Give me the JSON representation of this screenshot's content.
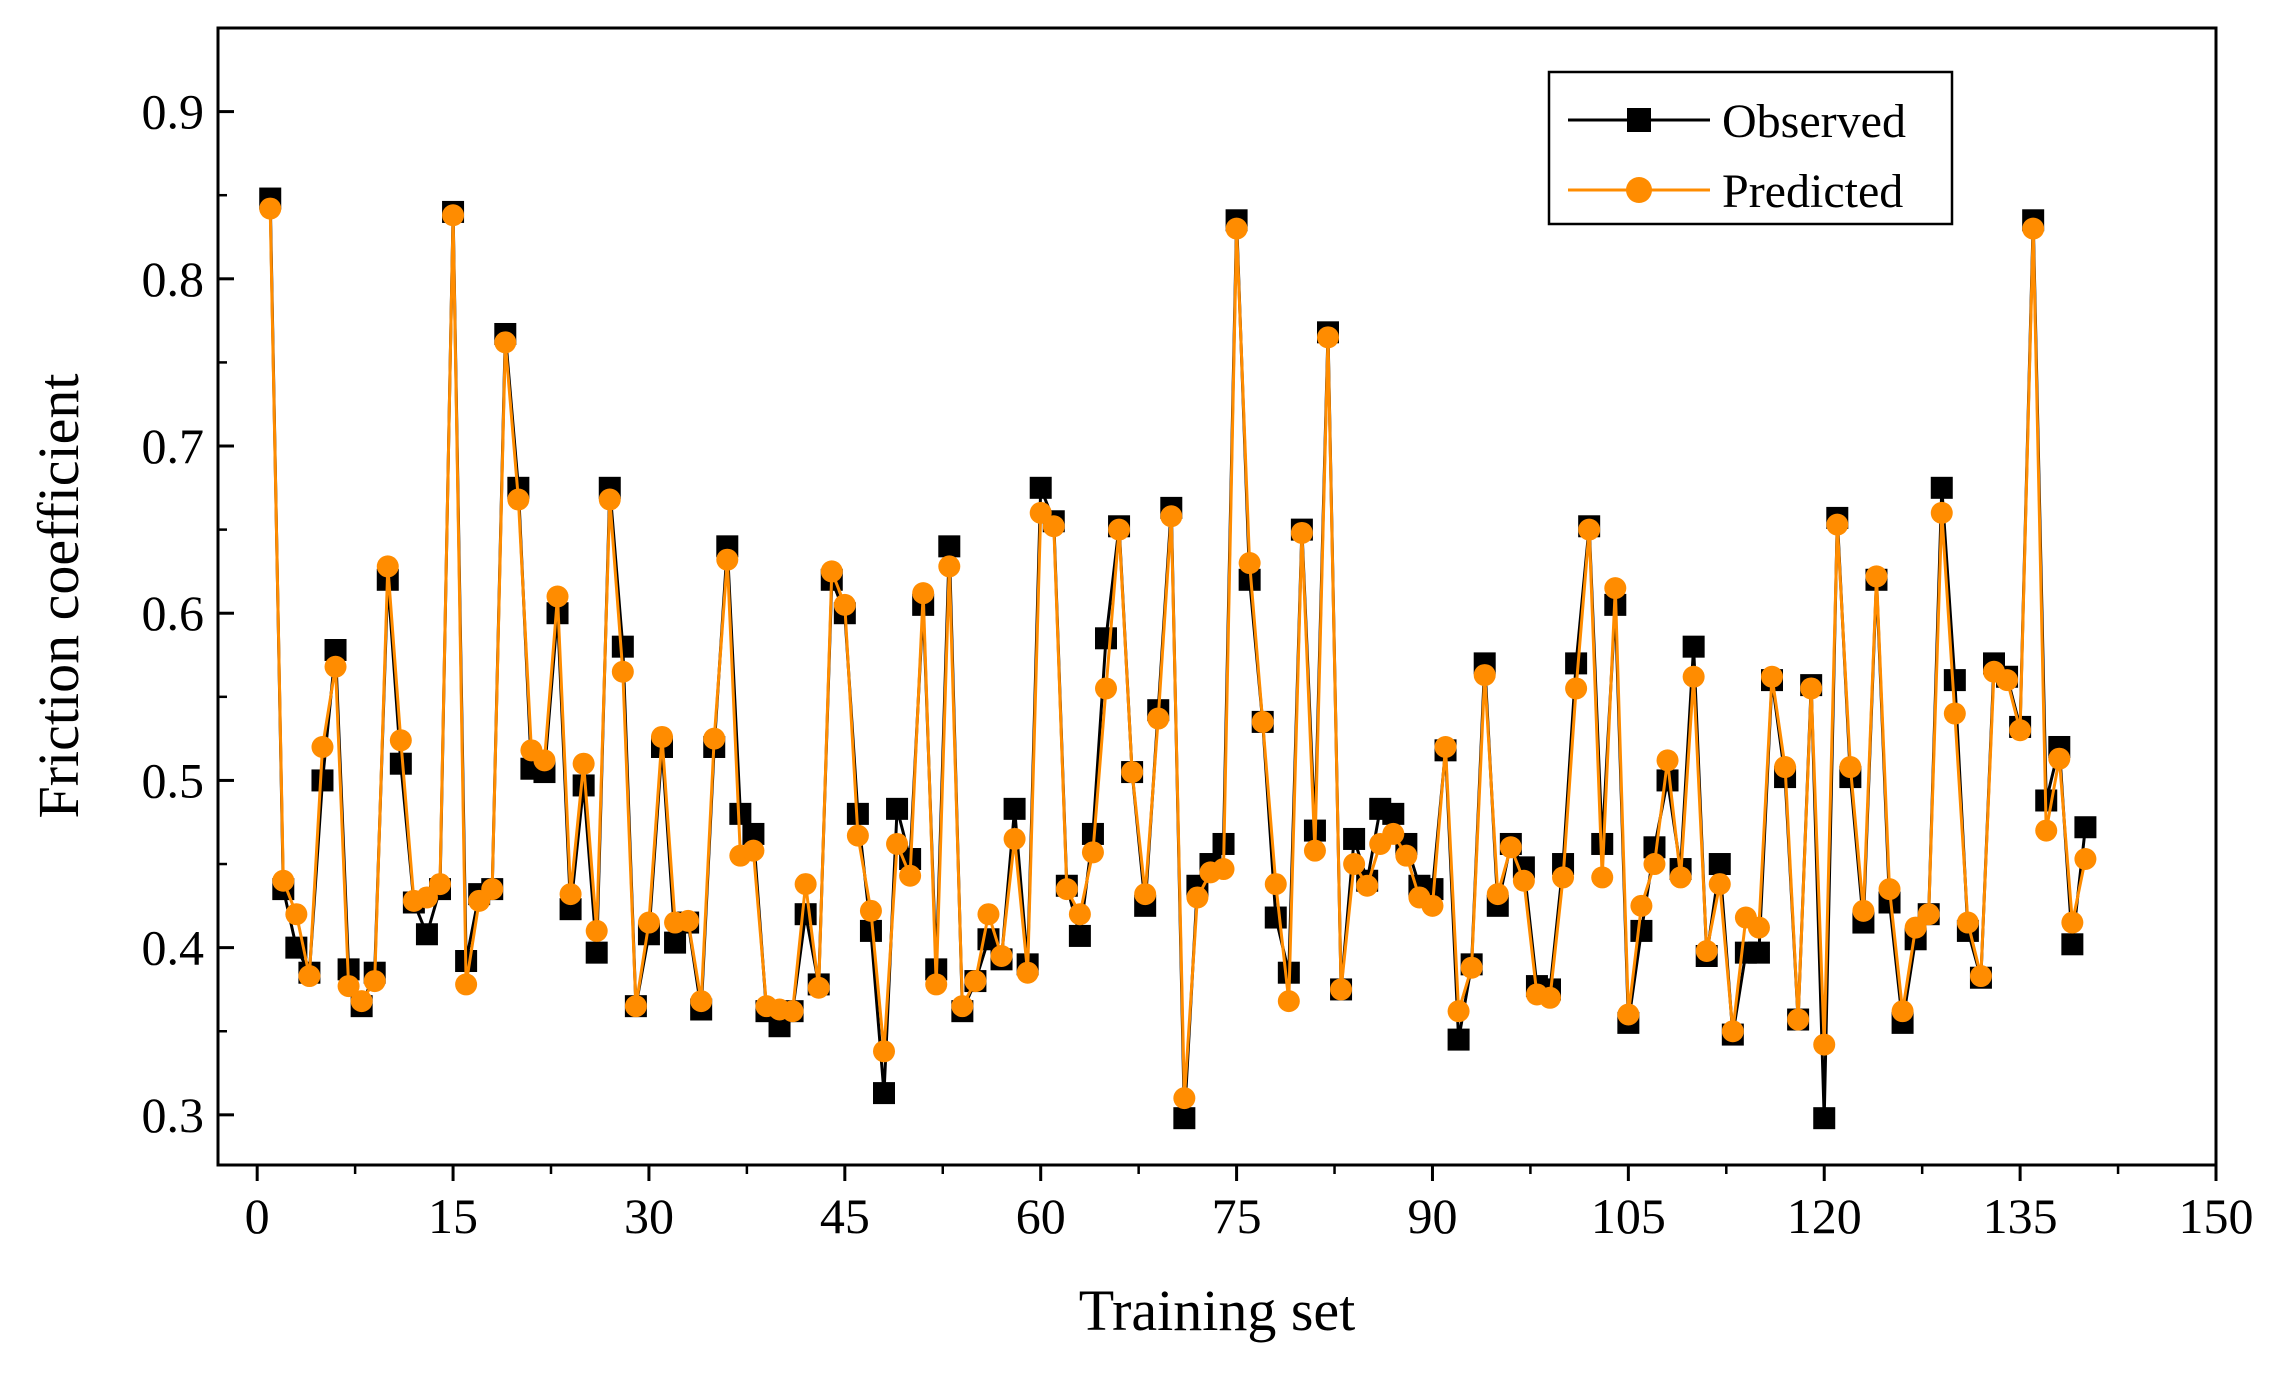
{
  "chart_data": {
    "type": "line",
    "title": "",
    "xlabel": "Training set",
    "ylabel": "Friction coefficient",
    "xlim": [
      -3,
      150
    ],
    "ylim": [
      0.27,
      0.95
    ],
    "xticks": [
      0,
      15,
      30,
      45,
      60,
      75,
      90,
      105,
      120,
      135,
      150
    ],
    "yticks": [
      0.3,
      0.4,
      0.5,
      0.6,
      0.7,
      0.8,
      0.9
    ],
    "ytick_labels": [
      "0.3",
      "0.4",
      "0.5",
      "0.6",
      "0.7",
      "0.8",
      "0.9"
    ],
    "legend_position": "top-right",
    "grid": false,
    "x": [
      1,
      2,
      3,
      4,
      5,
      6,
      7,
      8,
      9,
      10,
      11,
      12,
      13,
      14,
      15,
      16,
      17,
      18,
      19,
      20,
      21,
      22,
      23,
      24,
      25,
      26,
      27,
      28,
      29,
      30,
      31,
      32,
      33,
      34,
      35,
      36,
      37,
      38,
      39,
      40,
      41,
      42,
      43,
      44,
      45,
      46,
      47,
      48,
      49,
      50,
      51,
      52,
      53,
      54,
      55,
      56,
      57,
      58,
      59,
      60,
      61,
      62,
      63,
      64,
      65,
      66,
      67,
      68,
      69,
      70,
      71,
      72,
      73,
      74,
      75,
      76,
      77,
      78,
      79,
      80,
      81,
      82,
      83,
      84,
      85,
      86,
      87,
      88,
      89,
      90,
      91,
      92,
      93,
      94,
      95,
      96,
      97,
      98,
      99,
      100,
      101,
      102,
      103,
      104,
      105,
      106,
      107,
      108,
      109,
      110,
      111,
      112,
      113,
      114,
      115,
      116,
      117,
      118,
      119,
      120,
      121,
      122,
      123,
      124,
      125,
      126,
      127,
      128,
      129,
      130,
      131,
      132,
      133,
      134,
      135,
      136,
      137,
      138,
      139,
      140
    ],
    "series": [
      {
        "name": "Observed",
        "color": "#000000",
        "marker": "square",
        "values": [
          0.848,
          0.435,
          0.4,
          0.385,
          0.5,
          0.578,
          0.387,
          0.365,
          0.385,
          0.62,
          0.51,
          0.427,
          0.408,
          0.435,
          0.84,
          0.392,
          0.432,
          0.435,
          0.767,
          0.675,
          0.507,
          0.505,
          0.6,
          0.423,
          0.497,
          0.397,
          0.675,
          0.58,
          0.365,
          0.408,
          0.52,
          0.403,
          0.415,
          0.363,
          0.52,
          0.64,
          0.48,
          0.468,
          0.362,
          0.353,
          0.362,
          0.42,
          0.378,
          0.62,
          0.6,
          0.48,
          0.41,
          0.313,
          0.483,
          0.453,
          0.605,
          0.387,
          0.64,
          0.362,
          0.38,
          0.405,
          0.393,
          0.483,
          0.39,
          0.675,
          0.655,
          0.437,
          0.407,
          0.468,
          0.585,
          0.652,
          0.505,
          0.425,
          0.542,
          0.663,
          0.298,
          0.437,
          0.45,
          0.462,
          0.835,
          0.62,
          0.535,
          0.418,
          0.385,
          0.65,
          0.47,
          0.768,
          0.375,
          0.465,
          0.44,
          0.483,
          0.48,
          0.462,
          0.437,
          0.435,
          0.518,
          0.345,
          0.39,
          0.57,
          0.425,
          0.462,
          0.448,
          0.377,
          0.375,
          0.45,
          0.57,
          0.652,
          0.462,
          0.605,
          0.355,
          0.41,
          0.46,
          0.5,
          0.447,
          0.58,
          0.395,
          0.45,
          0.348,
          0.397,
          0.397,
          0.56,
          0.502,
          0.357,
          0.557,
          0.298,
          0.657,
          0.502,
          0.415,
          0.62,
          0.427,
          0.355,
          0.405,
          0.42,
          0.675,
          0.56,
          0.41,
          0.382,
          0.57,
          0.562,
          0.532,
          0.835,
          0.488,
          0.52,
          0.402,
          0.472
        ]
      },
      {
        "name": "Predicted",
        "color": "#FF8C00",
        "marker": "circle",
        "values": [
          0.842,
          0.44,
          0.42,
          0.383,
          0.52,
          0.568,
          0.377,
          0.368,
          0.38,
          0.628,
          0.524,
          0.428,
          0.43,
          0.438,
          0.838,
          0.378,
          0.428,
          0.435,
          0.762,
          0.668,
          0.518,
          0.512,
          0.61,
          0.432,
          0.51,
          0.41,
          0.668,
          0.565,
          0.365,
          0.415,
          0.526,
          0.415,
          0.416,
          0.368,
          0.525,
          0.632,
          0.455,
          0.458,
          0.365,
          0.363,
          0.362,
          0.438,
          0.376,
          0.625,
          0.605,
          0.467,
          0.422,
          0.338,
          0.462,
          0.443,
          0.612,
          0.378,
          0.628,
          0.365,
          0.38,
          0.42,
          0.395,
          0.465,
          0.385,
          0.66,
          0.652,
          0.435,
          0.42,
          0.457,
          0.555,
          0.65,
          0.505,
          0.432,
          0.537,
          0.658,
          0.31,
          0.43,
          0.445,
          0.447,
          0.83,
          0.63,
          0.535,
          0.438,
          0.368,
          0.648,
          0.458,
          0.765,
          0.375,
          0.45,
          0.437,
          0.462,
          0.468,
          0.455,
          0.43,
          0.425,
          0.52,
          0.362,
          0.388,
          0.563,
          0.432,
          0.46,
          0.44,
          0.372,
          0.37,
          0.442,
          0.555,
          0.65,
          0.442,
          0.615,
          0.36,
          0.425,
          0.45,
          0.512,
          0.442,
          0.562,
          0.398,
          0.438,
          0.35,
          0.418,
          0.412,
          0.562,
          0.508,
          0.357,
          0.555,
          0.342,
          0.653,
          0.508,
          0.422,
          0.622,
          0.435,
          0.362,
          0.412,
          0.42,
          0.66,
          0.54,
          0.415,
          0.383,
          0.565,
          0.56,
          0.53,
          0.83,
          0.47,
          0.513,
          0.415,
          0.453
        ]
      }
    ]
  }
}
